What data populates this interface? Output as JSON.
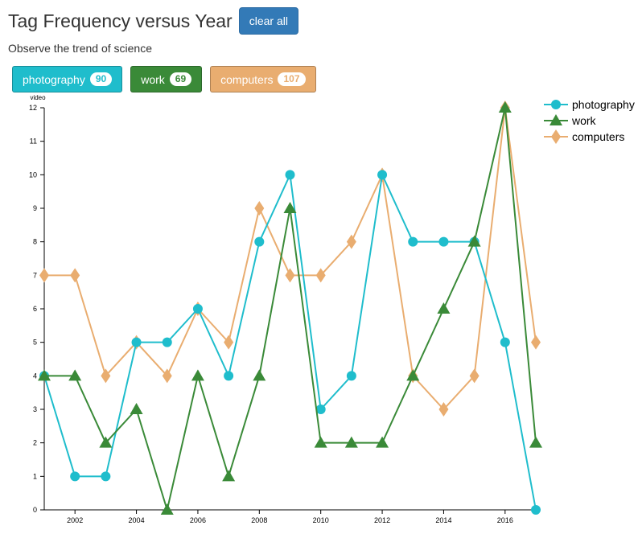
{
  "header": {
    "title": "Tag Frequency versus Year",
    "clear_label": "clear all",
    "subtitle": "Observe the trend of science"
  },
  "tags": [
    {
      "label": "photography",
      "count": "90",
      "color": "#1fbdcc"
    },
    {
      "label": "work",
      "count": "69",
      "color": "#3a8a38"
    },
    {
      "label": "computers",
      "count": "107",
      "color": "#e9ad70"
    }
  ],
  "chart_data": {
    "type": "line",
    "ylabel": "video",
    "xlim": [
      2001,
      2017
    ],
    "ylim": [
      0,
      12
    ],
    "x_ticks": [
      2002,
      2004,
      2006,
      2008,
      2010,
      2012,
      2014,
      2016
    ],
    "y_ticks": [
      0,
      1,
      2,
      3,
      4,
      5,
      6,
      7,
      8,
      9,
      10,
      11,
      12
    ],
    "legend_position": "top-right",
    "x": [
      2001,
      2002,
      2003,
      2004,
      2005,
      2006,
      2007,
      2008,
      2009,
      2010,
      2011,
      2012,
      2013,
      2014,
      2015,
      2016,
      2017
    ],
    "series": [
      {
        "name": "photography",
        "marker": "circle",
        "color": "#1fbdcc",
        "values": [
          4,
          1,
          1,
          5,
          5,
          6,
          4,
          8,
          10,
          3,
          4,
          10,
          8,
          8,
          8,
          5,
          0
        ]
      },
      {
        "name": "work",
        "marker": "triangle",
        "color": "#3a8a38",
        "values": [
          4,
          4,
          2,
          3,
          0,
          4,
          1,
          4,
          9,
          2,
          2,
          2,
          4,
          6,
          8,
          12,
          2
        ]
      },
      {
        "name": "computers",
        "marker": "diamond",
        "color": "#e9ad70",
        "values": [
          7,
          7,
          4,
          5,
          4,
          6,
          5,
          9,
          7,
          7,
          8,
          10,
          4,
          3,
          4,
          12,
          5
        ]
      }
    ]
  }
}
